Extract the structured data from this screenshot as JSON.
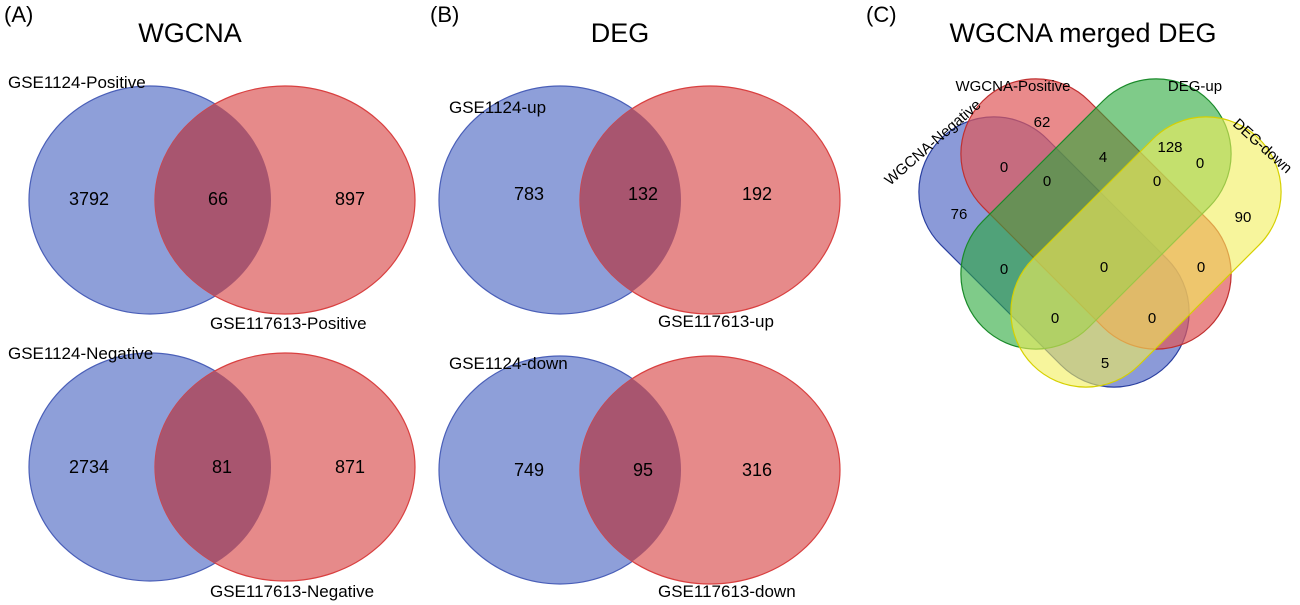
{
  "panels": [
    {
      "id": "A",
      "letter": "(A)",
      "title": "WGCNA",
      "venns": [
        {
          "sets": [
            "GSE1124-Positive",
            "GSE117613-Positive"
          ],
          "counts": {
            "left_only": "3792",
            "both": "66",
            "right_only": "897"
          }
        },
        {
          "sets": [
            "GSE1124-Negative",
            "GSE117613-Negative"
          ],
          "counts": {
            "left_only": "2734",
            "both": "81",
            "right_only": "871"
          }
        }
      ]
    },
    {
      "id": "B",
      "letter": "(B)",
      "title": "DEG",
      "venns": [
        {
          "sets": [
            "GSE1124-up",
            "GSE117613-up"
          ],
          "counts": {
            "left_only": "783",
            "both": "132",
            "right_only": "192"
          }
        },
        {
          "sets": [
            "GSE1124-down",
            "GSE117613-down"
          ],
          "counts": {
            "left_only": "749",
            "both": "95",
            "right_only": "316"
          }
        }
      ]
    },
    {
      "id": "C",
      "letter": "(C)",
      "title": "WGCNA merged DEG",
      "sets": [
        "WGCNA-Negative",
        "WGCNA-Positive",
        "DEG-up",
        "DEG-down"
      ],
      "counts": {
        "neg_only": "76",
        "pos_only": "62",
        "up_only": "128",
        "down_only": "90",
        "neg_pos": "0",
        "pos_up": "4",
        "up_down": "0",
        "neg_pos_up": "0",
        "pos_up_down": "0",
        "neg_up": "0",
        "pos_down": "0",
        "all_four": "0",
        "neg_up_down": "0",
        "neg_pos_down": "0",
        "neg_down": "5"
      }
    }
  ],
  "colors": {
    "blue_fill": "#8e9fd9",
    "blue_stroke": "#4a5fb8",
    "red_fill": "#e68a8a",
    "red_stroke": "#d94040",
    "overlap_fill": "#a8556f",
    "green_fill": "#3ab54a",
    "green_stroke": "#2a9a3a",
    "yellow_fill": "#f2ef6a",
    "yellow_stroke": "#d6d000"
  }
}
